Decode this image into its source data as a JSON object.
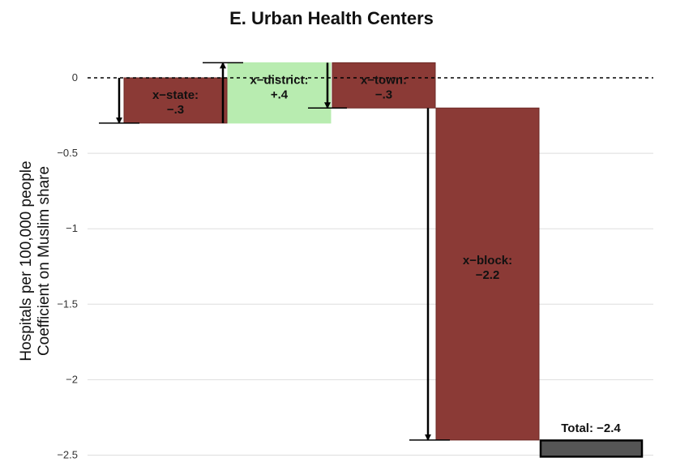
{
  "chart_data": {
    "type": "waterfall",
    "title": "E. Urban Health Centers",
    "ylabel_lines": [
      "Hospitals per 100,000 people",
      "Coefficient on Muslim share"
    ],
    "ylim": [
      -2.5,
      0.1
    ],
    "yticks": [
      0,
      -0.5,
      -1,
      -1.5,
      -2,
      -2.5
    ],
    "ytick_labels": [
      "0",
      "−0.5",
      "−1",
      "−1.5",
      "−2",
      "−2.5"
    ],
    "grid": true,
    "steps": [
      {
        "label_lines": [
          "x−state:",
          "−.3"
        ],
        "start": 0,
        "end": -0.3,
        "color": "#8b3a36"
      },
      {
        "label_lines": [
          "x−district:",
          "+.4"
        ],
        "start": -0.3,
        "end": 0.1,
        "color": "#b8ecb0"
      },
      {
        "label_lines": [
          "x−town:",
          "−.3"
        ],
        "start": 0.1,
        "end": -0.2,
        "color": "#8b3a36"
      },
      {
        "label_lines": [
          "x−block:",
          "−2.2"
        ],
        "start": -0.2,
        "end": -2.4,
        "color": "#8b3a36"
      }
    ],
    "total": {
      "label": "Total: −2.4",
      "value": -2.4,
      "color": "#555555"
    }
  }
}
